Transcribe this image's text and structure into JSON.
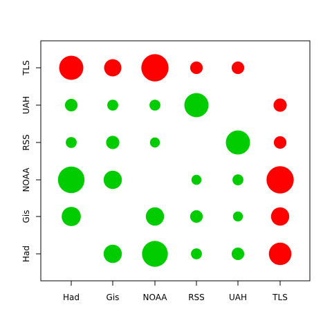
{
  "chart_data": {
    "type": "scatter",
    "subtype": "bubble-matrix",
    "title": "",
    "xlabel": "",
    "ylabel": "",
    "x_categories": [
      "Had",
      "Gis",
      "NOAA",
      "RSS",
      "UAH",
      "TLS"
    ],
    "y_categories": [
      "Had",
      "Gis",
      "NOAA",
      "RSS",
      "UAH",
      "TLS"
    ],
    "grid": false,
    "legend": "none",
    "colors": {
      "positive": "#00cc00",
      "negative": "#ff0000"
    },
    "points": [
      {
        "x": "Gis",
        "y": "Had",
        "size": 0.55,
        "color": "positive"
      },
      {
        "x": "NOAA",
        "y": "Had",
        "size": 0.78,
        "color": "positive"
      },
      {
        "x": "RSS",
        "y": "Had",
        "size": 0.33,
        "color": "positive"
      },
      {
        "x": "UAH",
        "y": "Had",
        "size": 0.38,
        "color": "positive"
      },
      {
        "x": "TLS",
        "y": "Had",
        "size": 0.68,
        "color": "negative"
      },
      {
        "x": "Had",
        "y": "Gis",
        "size": 0.58,
        "color": "positive"
      },
      {
        "x": "NOAA",
        "y": "Gis",
        "size": 0.55,
        "color": "positive"
      },
      {
        "x": "RSS",
        "y": "Gis",
        "size": 0.38,
        "color": "positive"
      },
      {
        "x": "UAH",
        "y": "Gis",
        "size": 0.3,
        "color": "positive"
      },
      {
        "x": "TLS",
        "y": "Gis",
        "size": 0.55,
        "color": "negative"
      },
      {
        "x": "Had",
        "y": "NOAA",
        "size": 0.8,
        "color": "positive"
      },
      {
        "x": "Gis",
        "y": "NOAA",
        "size": 0.55,
        "color": "positive"
      },
      {
        "x": "RSS",
        "y": "NOAA",
        "size": 0.3,
        "color": "positive"
      },
      {
        "x": "UAH",
        "y": "NOAA",
        "size": 0.33,
        "color": "positive"
      },
      {
        "x": "TLS",
        "y": "NOAA",
        "size": 0.82,
        "color": "negative"
      },
      {
        "x": "Had",
        "y": "RSS",
        "size": 0.33,
        "color": "positive"
      },
      {
        "x": "Gis",
        "y": "RSS",
        "size": 0.4,
        "color": "positive"
      },
      {
        "x": "NOAA",
        "y": "RSS",
        "size": 0.3,
        "color": "positive"
      },
      {
        "x": "UAH",
        "y": "RSS",
        "size": 0.73,
        "color": "positive"
      },
      {
        "x": "TLS",
        "y": "RSS",
        "size": 0.38,
        "color": "negative"
      },
      {
        "x": "Had",
        "y": "UAH",
        "size": 0.38,
        "color": "positive"
      },
      {
        "x": "Gis",
        "y": "UAH",
        "size": 0.33,
        "color": "positive"
      },
      {
        "x": "NOAA",
        "y": "UAH",
        "size": 0.33,
        "color": "positive"
      },
      {
        "x": "RSS",
        "y": "UAH",
        "size": 0.73,
        "color": "positive"
      },
      {
        "x": "TLS",
        "y": "UAH",
        "size": 0.4,
        "color": "negative"
      },
      {
        "x": "Had",
        "y": "TLS",
        "size": 0.73,
        "color": "negative"
      },
      {
        "x": "Gis",
        "y": "TLS",
        "size": 0.52,
        "color": "negative"
      },
      {
        "x": "NOAA",
        "y": "TLS",
        "size": 0.82,
        "color": "negative"
      },
      {
        "x": "RSS",
        "y": "TLS",
        "size": 0.38,
        "color": "negative"
      },
      {
        "x": "UAH",
        "y": "TLS",
        "size": 0.38,
        "color": "negative"
      }
    ]
  }
}
